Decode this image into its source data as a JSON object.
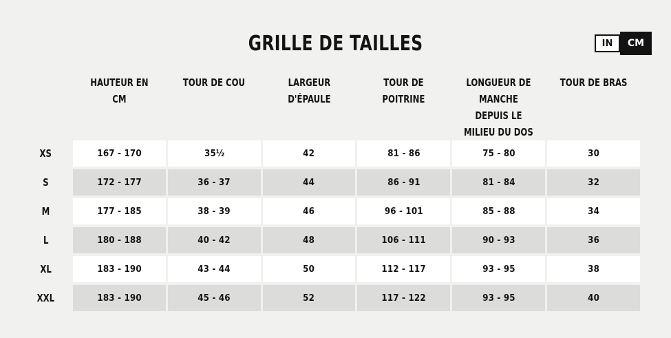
{
  "page": {
    "title": "GRILLE DE TAILLES",
    "unit_toggle": {
      "in_label": "IN",
      "cm_label": "CM",
      "selected": "CM"
    }
  },
  "table": {
    "columns": [
      "HAUTEUR EN CM",
      "TOUR DE COU",
      "LARGEUR D'ÉPAULE",
      "TOUR DE POITRINE",
      "LONGUEUR DE MANCHE DEPUIS LE MILIEU DU DOS",
      "TOUR DE BRAS"
    ],
    "rows": [
      {
        "size": "XS",
        "values": [
          "167 - 170",
          "35½",
          "42",
          "81 - 86",
          "75 - 80",
          "30"
        ]
      },
      {
        "size": "S",
        "values": [
          "172 - 177",
          "36 - 37",
          "44",
          "86 - 91",
          "81 - 84",
          "32"
        ]
      },
      {
        "size": "M",
        "values": [
          "177 - 185",
          "38 - 39",
          "46",
          "96 - 101",
          "85 - 88",
          "34"
        ]
      },
      {
        "size": "L",
        "values": [
          "180 - 188",
          "40 - 42",
          "48",
          "106 - 111",
          "90 - 93",
          "36"
        ]
      },
      {
        "size": "XL",
        "values": [
          "183 - 190",
          "43 - 44",
          "50",
          "112 - 117",
          "93 - 95",
          "38"
        ]
      },
      {
        "size": "XXL",
        "values": [
          "183 - 190",
          "45 - 46",
          "52",
          "117 - 122",
          "93 - 95",
          "40"
        ]
      }
    ]
  },
  "colors": {
    "background": "#f1f1ef",
    "row_white": "#ffffff",
    "row_gray": "#dcdcdb",
    "ink": "#131313",
    "toggle_selected_bg": "#131313",
    "toggle_selected_text": "#ffffff"
  }
}
